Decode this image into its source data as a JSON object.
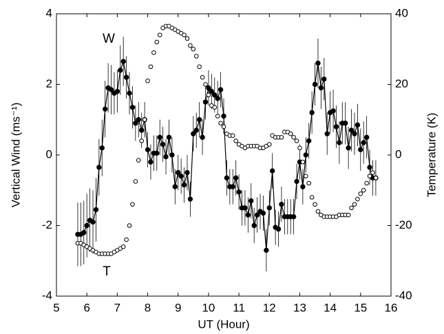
{
  "chart_data": {
    "type": "line",
    "xlabel": "UT (Hour)",
    "ylabel": "Vertical Wind (ms⁻¹)",
    "y2label": "Temperature (K)",
    "xlim": [
      5,
      16
    ],
    "xticks": [
      5,
      6,
      7,
      8,
      9,
      10,
      11,
      12,
      13,
      14,
      15,
      16
    ],
    "ylim": [
      -4,
      4
    ],
    "yticks": [
      -4,
      -2,
      0,
      2,
      4
    ],
    "y2lim": [
      -40,
      40
    ],
    "y2ticks": [
      -40,
      -20,
      0,
      20,
      40
    ],
    "x": [
      5.7,
      5.8,
      5.9,
      6.0,
      6.1,
      6.2,
      6.3,
      6.4,
      6.5,
      6.6,
      6.7,
      6.8,
      6.9,
      7.0,
      7.1,
      7.2,
      7.3,
      7.4,
      7.5,
      7.6,
      7.7,
      7.8,
      7.9,
      8.0,
      8.1,
      8.2,
      8.3,
      8.4,
      8.5,
      8.6,
      8.7,
      8.8,
      8.9,
      9.0,
      9.1,
      9.2,
      9.3,
      9.4,
      9.5,
      9.6,
      9.7,
      9.8,
      9.9,
      10.0,
      10.1,
      10.2,
      10.3,
      10.4,
      10.5,
      10.6,
      10.7,
      10.8,
      10.9,
      11.0,
      11.1,
      11.2,
      11.3,
      11.4,
      11.5,
      11.6,
      11.7,
      11.8,
      11.9,
      12.0,
      12.1,
      12.2,
      12.3,
      12.4,
      12.5,
      12.6,
      12.7,
      12.8,
      12.9,
      13.0,
      13.1,
      13.2,
      13.3,
      13.4,
      13.5,
      13.6,
      13.7,
      13.8,
      13.9,
      14.0,
      14.1,
      14.2,
      14.3,
      14.4,
      14.5,
      14.6,
      14.7,
      14.8,
      14.9,
      15.0,
      15.1,
      15.2,
      15.3,
      15.4,
      15.5
    ],
    "series": [
      {
        "name": "W",
        "color": "#000000",
        "axis": "y",
        "marker": "filled",
        "values": [
          -2.25,
          -2.25,
          -2.2,
          -2.0,
          -1.85,
          -1.9,
          -1.55,
          -0.35,
          0.2,
          1.3,
          1.9,
          1.85,
          1.75,
          1.8,
          2.4,
          2.65,
          2.2,
          1.75,
          1.35,
          0.9,
          1.0,
          0.7,
          1.0,
          0.15,
          -0.2,
          0.05,
          0.05,
          0.5,
          0.3,
          -0.05,
          0.5,
          0.0,
          -0.9,
          -0.5,
          -0.6,
          -0.85,
          -0.5,
          -1.25,
          0.6,
          0.7,
          1.0,
          0.5,
          1.5,
          1.9,
          1.8,
          1.7,
          1.6,
          1.85,
          1.1,
          -0.65,
          -0.9,
          -0.9,
          -0.65,
          -1.05,
          -1.5,
          -1.5,
          -1.7,
          -1.3,
          -2.0,
          -1.7,
          -1.6,
          -1.65,
          -2.7,
          -1.5,
          -0.45,
          -2.05,
          -2.1,
          -1.4,
          -1.75,
          -1.75,
          -1.75,
          -1.75,
          -0.75,
          -0.2,
          -0.9,
          0.0,
          0.4,
          1.2,
          2.0,
          2.6,
          1.9,
          2.15,
          0.6,
          1.2,
          1.25,
          0.8,
          0.35,
          0.9,
          0.9,
          0.2,
          0.7,
          0.6,
          0.85,
          0.15,
          0.35,
          0.5,
          -0.35,
          -0.65,
          -0.65
        ],
        "errors": [
          0.9,
          0.9,
          0.9,
          0.9,
          0.9,
          0.9,
          0.9,
          0.8,
          0.8,
          0.8,
          0.7,
          0.7,
          0.6,
          0.6,
          0.7,
          0.7,
          0.6,
          0.6,
          0.6,
          0.5,
          0.5,
          0.5,
          0.5,
          0.5,
          0.5,
          0.5,
          0.5,
          0.5,
          0.5,
          0.5,
          0.5,
          0.5,
          0.5,
          0.5,
          0.5,
          0.5,
          0.5,
          0.5,
          0.5,
          0.5,
          0.5,
          0.5,
          0.5,
          0.5,
          0.5,
          0.5,
          0.5,
          0.5,
          0.5,
          0.5,
          0.5,
          0.5,
          0.5,
          0.5,
          0.5,
          0.5,
          0.5,
          0.5,
          0.5,
          0.5,
          0.5,
          0.5,
          0.6,
          0.5,
          0.5,
          0.5,
          0.5,
          0.5,
          0.5,
          0.5,
          0.5,
          0.5,
          0.5,
          0.5,
          0.5,
          0.5,
          0.5,
          0.6,
          0.6,
          0.7,
          0.6,
          0.6,
          0.6,
          0.6,
          0.6,
          0.6,
          0.6,
          0.6,
          0.6,
          0.6,
          0.6,
          0.6,
          0.6,
          0.6,
          0.6,
          0.6,
          0.5,
          0.5,
          0.5
        ]
      },
      {
        "name": "T",
        "color": "#000000",
        "axis": "y2",
        "marker": "open",
        "values": [
          -25,
          -25,
          -25.5,
          -26,
          -26.5,
          -27,
          -27.5,
          -28,
          -28,
          -28,
          -28,
          -28,
          -27.5,
          -27,
          -26.5,
          -26,
          -24,
          -20,
          -14,
          -7.5,
          -1.5,
          4,
          10,
          21,
          25,
          29,
          32,
          34,
          36,
          36.5,
          36.5,
          36,
          35.5,
          35,
          34.5,
          34,
          33,
          31,
          30,
          28,
          25,
          22,
          20,
          17,
          14,
          13.5,
          11,
          9,
          8,
          6,
          5.5,
          5.5,
          4,
          3,
          2.5,
          2,
          2.5,
          2.5,
          2.5,
          2.5,
          2,
          2,
          2.5,
          3,
          5.5,
          5,
          5,
          5,
          6.5,
          6.5,
          6,
          5,
          4,
          2,
          -2,
          -6,
          -8,
          -12,
          -14,
          -16,
          -17,
          -17.5,
          -17.5,
          -17.5,
          -17.5,
          -17.5,
          -17,
          -17,
          -17,
          -17,
          -15,
          -14,
          -12.5,
          -11,
          -10,
          -8,
          -6,
          -5,
          -6.5
        ]
      }
    ]
  }
}
